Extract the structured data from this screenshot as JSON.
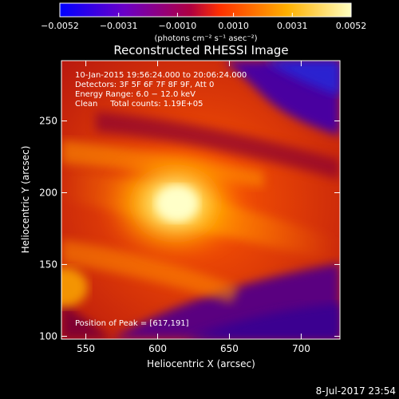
{
  "chart_data": {
    "type": "heatmap",
    "title": "Reconstructed RHESSI Image",
    "xlabel": "Heliocentric X (arcsec)",
    "ylabel": "Heliocentric Y (arcsec)",
    "colorbar": {
      "label": "(photons cm⁻² s⁻¹ asec⁻²)",
      "ticks": [
        "−0.0052",
        "−0.0031",
        "−0.0010",
        "0.0010",
        "0.0031",
        "0.0052"
      ],
      "range": [
        -0.0052,
        0.0052
      ],
      "colors": [
        "#0000ff",
        "#6a00c8",
        "#b00040",
        "#ff3000",
        "#ffb000",
        "#ffffc0"
      ]
    },
    "xlim": [
      533,
      727
    ],
    "ylim": [
      98,
      292
    ],
    "xticks": [
      550,
      600,
      650,
      700
    ],
    "yticks": [
      100,
      150,
      200,
      250
    ],
    "annotations": [
      "10-Jan-2015 19:56:24.000 to 20:06:24.000",
      "Detectors: 3F 5F 6F 7F 8F 9F, Att 0",
      "Energy Range: 6.0 − 12.0 keV",
      "Clean     Total counts: 1.19E+05"
    ],
    "peak_label": "Position of Peak = [617,191]",
    "peak": [
      617,
      191
    ],
    "footer": "8-Jul-2017 23:54"
  }
}
